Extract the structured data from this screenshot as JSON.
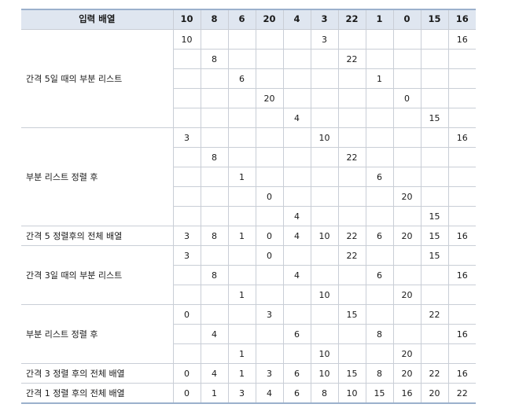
{
  "table": {
    "header": {
      "label": "입력 배열",
      "values": [
        "10",
        "8",
        "6",
        "20",
        "4",
        "3",
        "22",
        "1",
        "0",
        "15",
        "16"
      ]
    },
    "groups": [
      {
        "label": "간격 5일 때의 부분 리스트",
        "rows": [
          [
            "10",
            "",
            "",
            "",
            "",
            "3",
            "",
            "",
            "",
            "",
            "16"
          ],
          [
            "",
            "8",
            "",
            "",
            "",
            "",
            "22",
            "",
            "",
            "",
            ""
          ],
          [
            "",
            "",
            "6",
            "",
            "",
            "",
            "",
            "1",
            "",
            "",
            ""
          ],
          [
            "",
            "",
            "",
            "20",
            "",
            "",
            "",
            "",
            "0",
            "",
            ""
          ],
          [
            "",
            "",
            "",
            "",
            "4",
            "",
            "",
            "",
            "",
            "15",
            ""
          ]
        ]
      },
      {
        "label": "부분 리스트 정렬 후",
        "rows": [
          [
            "3",
            "",
            "",
            "",
            "",
            "10",
            "",
            "",
            "",
            "",
            "16"
          ],
          [
            "",
            "8",
            "",
            "",
            "",
            "",
            "22",
            "",
            "",
            "",
            ""
          ],
          [
            "",
            "",
            "1",
            "",
            "",
            "",
            "",
            "6",
            "",
            "",
            ""
          ],
          [
            "",
            "",
            "",
            "0",
            "",
            "",
            "",
            "",
            "20",
            "",
            ""
          ],
          [
            "",
            "",
            "",
            "",
            "4",
            "",
            "",
            "",
            "",
            "15",
            ""
          ]
        ]
      },
      {
        "label": "간격 5 정렬후의 전체 배열",
        "rows": [
          [
            "3",
            "8",
            "1",
            "0",
            "4",
            "10",
            "22",
            "6",
            "20",
            "15",
            "16"
          ]
        ]
      },
      {
        "label": "간격 3일 때의 부분 리스트",
        "rows": [
          [
            "3",
            "",
            "",
            "0",
            "",
            "",
            "22",
            "",
            "",
            "15",
            ""
          ],
          [
            "",
            "8",
            "",
            "",
            "4",
            "",
            "",
            "6",
            "",
            "",
            "16"
          ],
          [
            "",
            "",
            "1",
            "",
            "",
            "10",
            "",
            "",
            "20",
            "",
            ""
          ]
        ]
      },
      {
        "label": "부분 리스트 정렬 후",
        "rows": [
          [
            "0",
            "",
            "",
            "3",
            "",
            "",
            "15",
            "",
            "",
            "22",
            ""
          ],
          [
            "",
            "4",
            "",
            "",
            "6",
            "",
            "",
            "8",
            "",
            "",
            "16"
          ],
          [
            "",
            "",
            "1",
            "",
            "",
            "10",
            "",
            "",
            "20",
            "",
            ""
          ]
        ]
      },
      {
        "label": "간격 3 정렬 후의 전체 배열",
        "rows": [
          [
            "0",
            "4",
            "1",
            "3",
            "6",
            "10",
            "15",
            "8",
            "20",
            "22",
            "16"
          ]
        ]
      },
      {
        "label": "간격 1 정렬 후의 전체 배열",
        "rows": [
          [
            "0",
            "1",
            "3",
            "4",
            "6",
            "8",
            "10",
            "15",
            "16",
            "20",
            "22"
          ]
        ]
      }
    ]
  }
}
